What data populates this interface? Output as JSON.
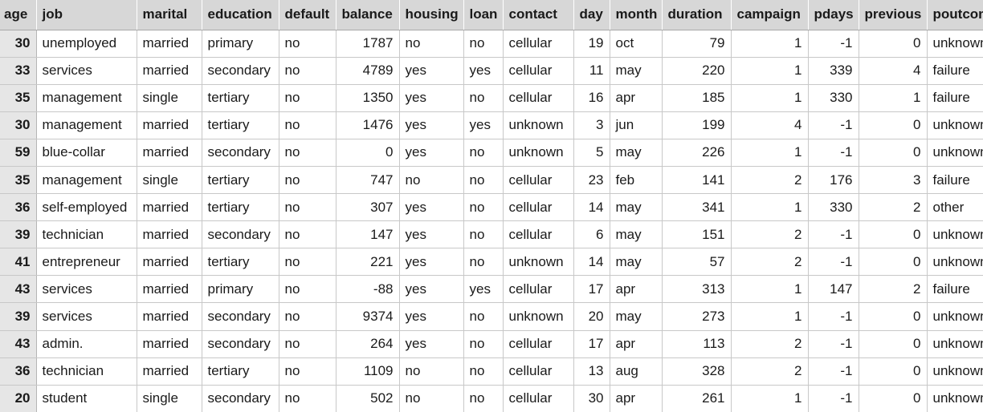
{
  "columns": [
    {
      "key": "age",
      "label": "age",
      "align": "num"
    },
    {
      "key": "job",
      "label": "job",
      "align": "txt"
    },
    {
      "key": "marital",
      "label": "marital",
      "align": "txt"
    },
    {
      "key": "education",
      "label": "education",
      "align": "txt"
    },
    {
      "key": "default",
      "label": "default",
      "align": "txt"
    },
    {
      "key": "balance",
      "label": "balance",
      "align": "num"
    },
    {
      "key": "housing",
      "label": "housing",
      "align": "txt"
    },
    {
      "key": "loan",
      "label": "loan",
      "align": "txt"
    },
    {
      "key": "contact",
      "label": "contact",
      "align": "txt"
    },
    {
      "key": "day",
      "label": "day",
      "align": "num"
    },
    {
      "key": "month",
      "label": "month",
      "align": "txt"
    },
    {
      "key": "duration",
      "label": "duration",
      "align": "num"
    },
    {
      "key": "campaign",
      "label": "campaign",
      "align": "num"
    },
    {
      "key": "pdays",
      "label": "pdays",
      "align": "num"
    },
    {
      "key": "previous",
      "label": "previous",
      "align": "num"
    },
    {
      "key": "poutcome",
      "label": "poutcome",
      "align": "txt"
    }
  ],
  "rows": [
    [
      "30",
      "unemployed",
      "married",
      "primary",
      "no",
      "1787",
      "no",
      "no",
      "cellular",
      "19",
      "oct",
      "79",
      "1",
      "-1",
      "0",
      "unknown"
    ],
    [
      "33",
      "services",
      "married",
      "secondary",
      "no",
      "4789",
      "yes",
      "yes",
      "cellular",
      "11",
      "may",
      "220",
      "1",
      "339",
      "4",
      "failure"
    ],
    [
      "35",
      "management",
      "single",
      "tertiary",
      "no",
      "1350",
      "yes",
      "no",
      "cellular",
      "16",
      "apr",
      "185",
      "1",
      "330",
      "1",
      "failure"
    ],
    [
      "30",
      "management",
      "married",
      "tertiary",
      "no",
      "1476",
      "yes",
      "yes",
      "unknown",
      "3",
      "jun",
      "199",
      "4",
      "-1",
      "0",
      "unknown"
    ],
    [
      "59",
      "blue-collar",
      "married",
      "secondary",
      "no",
      "0",
      "yes",
      "no",
      "unknown",
      "5",
      "may",
      "226",
      "1",
      "-1",
      "0",
      "unknown"
    ],
    [
      "35",
      "management",
      "single",
      "tertiary",
      "no",
      "747",
      "no",
      "no",
      "cellular",
      "23",
      "feb",
      "141",
      "2",
      "176",
      "3",
      "failure"
    ],
    [
      "36",
      "self-employed",
      "married",
      "tertiary",
      "no",
      "307",
      "yes",
      "no",
      "cellular",
      "14",
      "may",
      "341",
      "1",
      "330",
      "2",
      "other"
    ],
    [
      "39",
      "technician",
      "married",
      "secondary",
      "no",
      "147",
      "yes",
      "no",
      "cellular",
      "6",
      "may",
      "151",
      "2",
      "-1",
      "0",
      "unknown"
    ],
    [
      "41",
      "entrepreneur",
      "married",
      "tertiary",
      "no",
      "221",
      "yes",
      "no",
      "unknown",
      "14",
      "may",
      "57",
      "2",
      "-1",
      "0",
      "unknown"
    ],
    [
      "43",
      "services",
      "married",
      "primary",
      "no",
      "-88",
      "yes",
      "yes",
      "cellular",
      "17",
      "apr",
      "313",
      "1",
      "147",
      "2",
      "failure"
    ],
    [
      "39",
      "services",
      "married",
      "secondary",
      "no",
      "9374",
      "yes",
      "no",
      "unknown",
      "20",
      "may",
      "273",
      "1",
      "-1",
      "0",
      "unknown"
    ],
    [
      "43",
      "admin.",
      "married",
      "secondary",
      "no",
      "264",
      "yes",
      "no",
      "cellular",
      "17",
      "apr",
      "113",
      "2",
      "-1",
      "0",
      "unknown"
    ],
    [
      "36",
      "technician",
      "married",
      "tertiary",
      "no",
      "1109",
      "no",
      "no",
      "cellular",
      "13",
      "aug",
      "328",
      "2",
      "-1",
      "0",
      "unknown"
    ],
    [
      "20",
      "student",
      "single",
      "secondary",
      "no",
      "502",
      "no",
      "no",
      "cellular",
      "30",
      "apr",
      "261",
      "1",
      "-1",
      "0",
      "unknown"
    ]
  ]
}
